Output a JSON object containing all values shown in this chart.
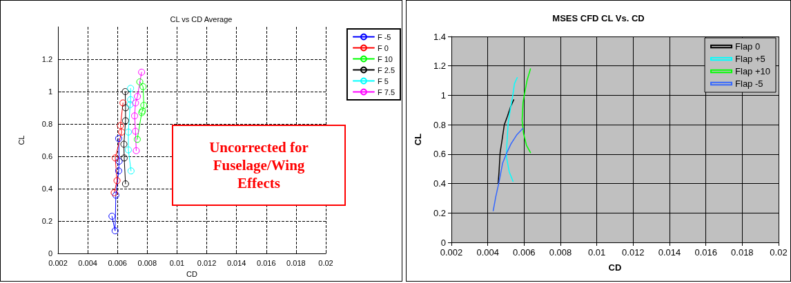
{
  "chart_data": [
    {
      "type": "line",
      "title": "CL vs CD Average",
      "xlabel": "CD",
      "ylabel": "CL",
      "xlim": [
        0.002,
        0.02
      ],
      "xticks": [
        0.002,
        0.004,
        0.006,
        0.008,
        0.01,
        0.012,
        0.014,
        0.016,
        0.018,
        0.02
      ],
      "ylim": [
        0,
        1.4
      ],
      "yticks": [
        0,
        0.2,
        0.4,
        0.6,
        0.8,
        1,
        1.2
      ],
      "grid": true,
      "legend": "top right",
      "marker": "circle",
      "line_style": "solid",
      "annotations": [
        "Uncorrected for\nFuselage/Wing\nEffects"
      ],
      "series": [
        {
          "name": "F -5",
          "color": "#0000ff",
          "x": [
            0.00563,
            0.00584,
            0.00589,
            0.00608,
            0.00611,
            0.00608
          ],
          "values": [
            0.23,
            0.14,
            0.36,
            0.51,
            0.57,
            0.71
          ]
        },
        {
          "name": "F 0",
          "color": "#ff0000",
          "x": [
            0.00578,
            0.00597,
            0.00585,
            0.00628,
            0.0062,
            0.00637
          ],
          "values": [
            0.375,
            0.45,
            0.59,
            0.75,
            0.79,
            0.93
          ]
        },
        {
          "name": "F 10",
          "color": "#00ff00",
          "x": [
            0.00733,
            0.00763,
            0.00768,
            0.00777,
            0.00772,
            0.0075
          ],
          "values": [
            0.705,
            0.87,
            0.88,
            0.915,
            1.03,
            1.06
          ]
        },
        {
          "name": "F 2.5",
          "color": "#000000",
          "x": [
            0.00654,
            0.00645,
            0.00643,
            0.00654,
            0.00654,
            0.00652
          ],
          "values": [
            0.43,
            0.59,
            0.675,
            0.82,
            0.9,
            1.0
          ]
        },
        {
          "name": "F 5",
          "color": "#00ffff",
          "x": [
            0.00691,
            0.00673,
            0.00673,
            0.00685,
            0.00688,
            0.00688
          ],
          "values": [
            0.51,
            0.64,
            0.75,
            0.92,
            0.95,
            1.02
          ]
        },
        {
          "name": "F 7.5",
          "color": "#ff00ff",
          "x": [
            0.00726,
            0.00721,
            0.00715,
            0.00721,
            0.00734,
            0.00762
          ],
          "values": [
            0.635,
            0.755,
            0.85,
            0.93,
            0.97,
            1.12
          ]
        }
      ]
    },
    {
      "type": "line",
      "title": "MSES CFD CL Vs. CD",
      "xlabel": "CD",
      "ylabel": "CL",
      "xlim": [
        0.002,
        0.02
      ],
      "xticks": [
        0.002,
        0.004,
        0.006,
        0.008,
        0.01,
        0.012,
        0.014,
        0.016,
        0.018,
        0.02
      ],
      "ylim": [
        0,
        1.4
      ],
      "yticks": [
        0,
        0.2,
        0.4,
        0.6,
        0.8,
        1,
        1.2,
        1.4
      ],
      "grid": true,
      "legend": "top right",
      "marker": "none",
      "line_style": "solid",
      "series": [
        {
          "name": "Flap 0",
          "color": "#000000",
          "x": [
            0.00457,
            0.00462,
            0.00468,
            0.00478,
            0.00491,
            0.00509,
            0.00525,
            0.00543
          ],
          "values": [
            0.4,
            0.48,
            0.61,
            0.69,
            0.8,
            0.86,
            0.92,
            0.97
          ]
        },
        {
          "name": "Flap +5",
          "color": "#00ffff",
          "x": [
            0.00539,
            0.00518,
            0.00503,
            0.00505,
            0.00512,
            0.00525,
            0.00539,
            0.00547,
            0.00562
          ],
          "values": [
            0.415,
            0.48,
            0.58,
            0.66,
            0.81,
            0.91,
            1.01,
            1.08,
            1.12
          ]
        },
        {
          "name": "Flap +10",
          "color": "#00ff00",
          "x": [
            0.00635,
            0.00613,
            0.00597,
            0.00589,
            0.00594,
            0.00602,
            0.00616,
            0.00635
          ],
          "values": [
            0.61,
            0.66,
            0.74,
            0.83,
            0.95,
            1.01,
            1.1,
            1.18
          ]
        },
        {
          "name": "Flap -5",
          "color": "#3366ff",
          "x": [
            0.0043,
            0.00444,
            0.00462,
            0.00482,
            0.00505,
            0.00528,
            0.00559,
            0.00593
          ],
          "values": [
            0.215,
            0.31,
            0.41,
            0.54,
            0.61,
            0.67,
            0.73,
            0.775
          ]
        }
      ]
    }
  ]
}
